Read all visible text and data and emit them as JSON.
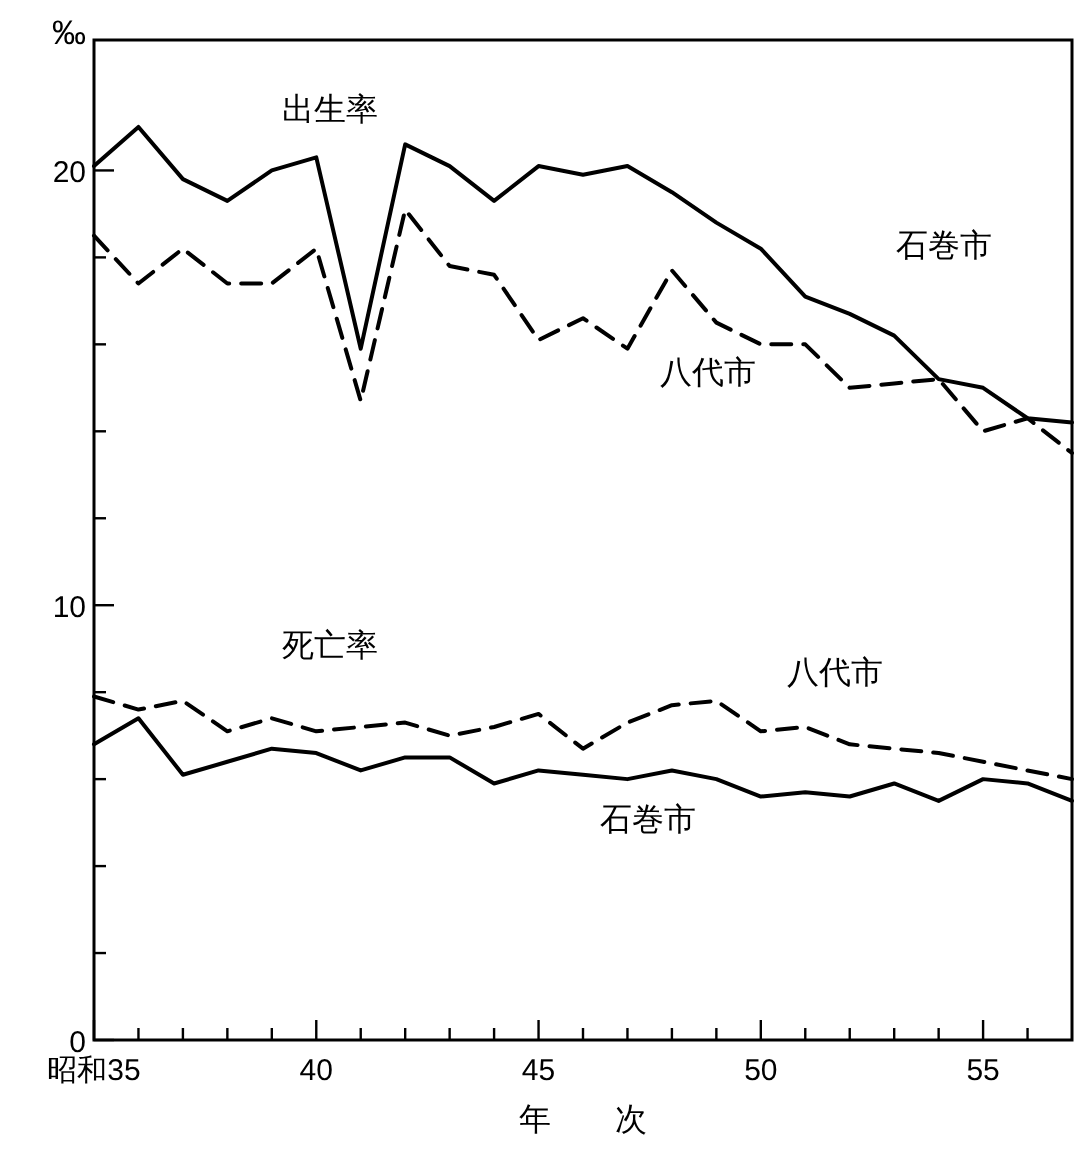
{
  "chart_data": {
    "type": "line",
    "ylabel": "‰",
    "xlabel": "年　　次",
    "annotations": [
      "出生率",
      "死亡率"
    ],
    "x": [
      35,
      36,
      37,
      38,
      39,
      40,
      41,
      42,
      43,
      44,
      45,
      46,
      47,
      48,
      49,
      50,
      51,
      52,
      53,
      54,
      55,
      56,
      57
    ],
    "xlim": [
      35,
      57
    ],
    "xticks": [
      {
        "value": 35,
        "label": "昭和35"
      },
      {
        "value": 36,
        "label": null
      },
      {
        "value": 37,
        "label": null
      },
      {
        "value": 38,
        "label": null
      },
      {
        "value": 39,
        "label": null
      },
      40,
      {
        "value": 41,
        "label": null
      },
      {
        "value": 42,
        "label": null
      },
      {
        "value": 43,
        "label": null
      },
      {
        "value": 44,
        "label": null
      },
      45,
      {
        "value": 46,
        "label": null
      },
      {
        "value": 47,
        "label": null
      },
      {
        "value": 48,
        "label": null
      },
      {
        "value": 49,
        "label": null
      },
      50,
      {
        "value": 51,
        "label": null
      },
      {
        "value": 52,
        "label": null
      },
      {
        "value": 53,
        "label": null
      },
      {
        "value": 54,
        "label": null
      },
      55,
      {
        "value": 56,
        "label": null
      }
    ],
    "ylim": [
      0,
      23
    ],
    "yticks": [
      0,
      {
        "value": 2,
        "label": null
      },
      {
        "value": 4,
        "label": null
      },
      {
        "value": 6,
        "label": null
      },
      {
        "value": 8,
        "label": null
      },
      10,
      {
        "value": 12,
        "label": null
      },
      {
        "value": 14,
        "label": null
      },
      {
        "value": 16,
        "label": null
      },
      {
        "value": 18,
        "label": null
      },
      20
    ],
    "series": [
      {
        "name": "石巻市",
        "color": "#000000",
        "line_style": "solid",
        "values": [
          20.1,
          21.0,
          19.8,
          19.3,
          20.0,
          20.3,
          15.9,
          20.6,
          20.1,
          19.3,
          20.1,
          19.9,
          20.1,
          19.5,
          18.8,
          18.2,
          17.1,
          16.7,
          16.2,
          15.2,
          15.0,
          14.3,
          14.2
        ]
      },
      {
        "name": "八代市",
        "color": "#000000",
        "line_style": "dashed",
        "values": [
          18.5,
          17.4,
          18.2,
          17.4,
          17.4,
          18.2,
          14.7,
          19.1,
          17.8,
          17.6,
          16.1,
          16.6,
          15.9,
          17.7,
          16.5,
          16.0,
          16.0,
          15.0,
          15.1,
          15.2,
          14.0,
          14.3,
          13.5
        ]
      },
      {
        "name": "八代市",
        "color": "#000000",
        "line_style": "dashed",
        "values": [
          7.9,
          7.6,
          7.8,
          7.1,
          7.4,
          7.1,
          7.2,
          7.3,
          7.0,
          7.2,
          7.5,
          6.7,
          7.3,
          7.7,
          7.8,
          7.1,
          7.2,
          6.8,
          6.7,
          6.6,
          6.4,
          6.2,
          6.0
        ]
      },
      {
        "name": "石巻市",
        "color": "#000000",
        "line_style": "solid",
        "values": [
          6.8,
          7.4,
          6.1,
          6.4,
          6.7,
          6.6,
          6.2,
          6.5,
          6.5,
          5.9,
          6.2,
          6.1,
          6.0,
          6.2,
          6.0,
          5.6,
          5.7,
          5.6,
          5.9,
          5.5,
          6.0,
          5.9,
          5.5
        ]
      }
    ]
  }
}
